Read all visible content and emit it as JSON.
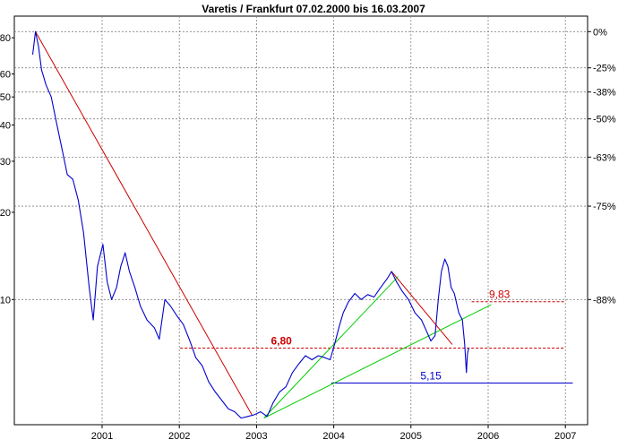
{
  "chart_data": {
    "type": "line",
    "title": "Varetis / Frankfurt 07.02.2000 bis 16.03.2007",
    "xlabel": "",
    "ylabel": "",
    "x_ticks": [
      "2001",
      "2002",
      "2003",
      "2004",
      "2005",
      "2006",
      "2007"
    ],
    "y_scale": "log",
    "ylim": [
      3.7,
      95
    ],
    "y_ticks_left": [
      {
        "value": 80,
        "label": "80"
      },
      {
        "value": 60,
        "label": "60"
      },
      {
        "value": 50,
        "label": "50"
      },
      {
        "value": 40,
        "label": "40"
      },
      {
        "value": 30,
        "label": "30"
      },
      {
        "value": 20,
        "label": "20"
      },
      {
        "value": 10,
        "label": "10"
      }
    ],
    "y_ticks_right": [
      {
        "value": 84,
        "label": "0%"
      },
      {
        "value": 63,
        "label": "-25%"
      },
      {
        "value": 52,
        "label": "-38%"
      },
      {
        "value": 42,
        "label": "-50%"
      },
      {
        "value": 31,
        "label": "-63%"
      },
      {
        "value": 21,
        "label": "-75%"
      },
      {
        "value": 10,
        "label": "-88%"
      }
    ],
    "grid": true,
    "series": [
      {
        "color": "#0000cc",
        "points": [
          [
            "2000-02-07",
            70
          ],
          [
            "2000-02-20",
            84
          ],
          [
            "2000-03-05",
            75
          ],
          [
            "2000-03-20",
            62
          ],
          [
            "2000-04-10",
            55
          ],
          [
            "2000-05-05",
            50
          ],
          [
            "2000-06-01",
            40
          ],
          [
            "2000-06-25",
            33
          ],
          [
            "2000-07-20",
            27
          ],
          [
            "2000-08-15",
            26
          ],
          [
            "2000-09-10",
            22
          ],
          [
            "2000-10-05",
            17
          ],
          [
            "2000-11-01",
            11
          ],
          [
            "2000-11-20",
            8.5
          ],
          [
            "2000-12-10",
            13
          ],
          [
            "2001-01-05",
            15.5
          ],
          [
            "2001-01-25",
            11.5
          ],
          [
            "2001-02-15",
            10
          ],
          [
            "2001-03-10",
            11
          ],
          [
            "2001-03-30",
            13
          ],
          [
            "2001-04-20",
            14.5
          ],
          [
            "2001-05-10",
            12.5
          ],
          [
            "2001-06-05",
            11
          ],
          [
            "2001-07-01",
            9.5
          ],
          [
            "2001-08-01",
            8.5
          ],
          [
            "2001-09-05",
            8
          ],
          [
            "2001-09-28",
            7.3
          ],
          [
            "2001-10-25",
            10
          ],
          [
            "2001-11-20",
            9.5
          ],
          [
            "2001-12-20",
            8.8
          ],
          [
            "2002-01-20",
            8.2
          ],
          [
            "2002-02-20",
            7.2
          ],
          [
            "2002-03-20",
            6.3
          ],
          [
            "2002-04-20",
            5.9
          ],
          [
            "2002-05-20",
            5.2
          ],
          [
            "2002-06-20",
            4.8
          ],
          [
            "2002-07-20",
            4.5
          ],
          [
            "2002-08-20",
            4.2
          ],
          [
            "2002-09-20",
            4.1
          ],
          [
            "2002-10-20",
            3.9
          ],
          [
            "2002-11-20",
            3.95
          ],
          [
            "2002-12-20",
            4.0
          ],
          [
            "2003-01-20",
            4.1
          ],
          [
            "2003-02-20",
            3.95
          ],
          [
            "2003-03-20",
            4.4
          ],
          [
            "2003-04-20",
            4.8
          ],
          [
            "2003-05-20",
            5.0
          ],
          [
            "2003-06-20",
            5.6
          ],
          [
            "2003-07-20",
            6.0
          ],
          [
            "2003-08-20",
            6.4
          ],
          [
            "2003-09-20",
            6.2
          ],
          [
            "2003-10-20",
            6.4
          ],
          [
            "2003-11-20",
            6.3
          ],
          [
            "2003-12-15",
            6.2
          ],
          [
            "2004-01-05",
            7.0
          ],
          [
            "2004-01-25",
            8.0
          ],
          [
            "2004-02-15",
            9.0
          ],
          [
            "2004-03-10",
            9.8
          ],
          [
            "2004-04-10",
            10.5
          ],
          [
            "2004-05-10",
            10.0
          ],
          [
            "2004-06-10",
            10.4
          ],
          [
            "2004-07-10",
            10.2
          ],
          [
            "2004-08-10",
            11.0
          ],
          [
            "2004-09-10",
            11.8
          ],
          [
            "2004-10-01",
            12.5
          ],
          [
            "2004-10-25",
            11.5
          ],
          [
            "2004-11-20",
            10.7
          ],
          [
            "2004-12-20",
            10.0
          ],
          [
            "2005-01-20",
            9.0
          ],
          [
            "2005-02-20",
            8.5
          ],
          [
            "2005-03-15",
            7.8
          ],
          [
            "2005-04-05",
            7.2
          ],
          [
            "2005-04-25",
            7.5
          ],
          [
            "2005-05-10",
            10.0
          ],
          [
            "2005-05-25",
            12.5
          ],
          [
            "2005-06-10",
            13.8
          ],
          [
            "2005-06-25",
            13.0
          ],
          [
            "2005-07-10",
            11.0
          ],
          [
            "2005-07-25",
            10.5
          ],
          [
            "2005-08-15",
            9.0
          ],
          [
            "2005-09-01",
            8.5
          ],
          [
            "2005-09-12",
            7.0
          ],
          [
            "2005-09-20",
            5.6
          ],
          [
            "2005-09-25",
            6.5
          ],
          [
            "2005-10-01",
            6.8
          ]
        ]
      }
    ],
    "trendlines": [
      {
        "color": "#cc0000",
        "from": [
          "2000-02-20",
          84
        ],
        "to": [
          "2002-12-10",
          4.0
        ]
      },
      {
        "color": "#cc0000",
        "from": [
          "2004-10-01",
          12.5
        ],
        "to": [
          "2005-07-15",
          7.0
        ]
      },
      {
        "color": "#00cc00",
        "from": [
          "2003-02-05",
          3.9
        ],
        "to": [
          "2004-11-01",
          12.0
        ]
      },
      {
        "color": "#00cc00",
        "from": [
          "2003-02-05",
          3.9
        ],
        "to": [
          "2006-01-15",
          9.6
        ]
      }
    ],
    "hlines": [
      {
        "value": 6.8,
        "from": "2002-01-05",
        "to": "2006-12-31",
        "color": "#cc0000",
        "style": "dashed",
        "label": "6,80",
        "label_at": "2003-03-10",
        "label_weight": "bold"
      },
      {
        "value": 9.83,
        "from": "2005-10-15",
        "to": "2006-12-31",
        "color": "#cc0000",
        "style": "dashed",
        "label": "9,83",
        "label_at": "2006-01-05",
        "label_weight": "normal"
      },
      {
        "value": 5.15,
        "from": "2003-12-20",
        "to": "2007-02-05",
        "color": "#0000cc",
        "style": "solid",
        "label": "5,15",
        "label_at": "2005-02-15",
        "label_weight": "normal"
      }
    ]
  }
}
